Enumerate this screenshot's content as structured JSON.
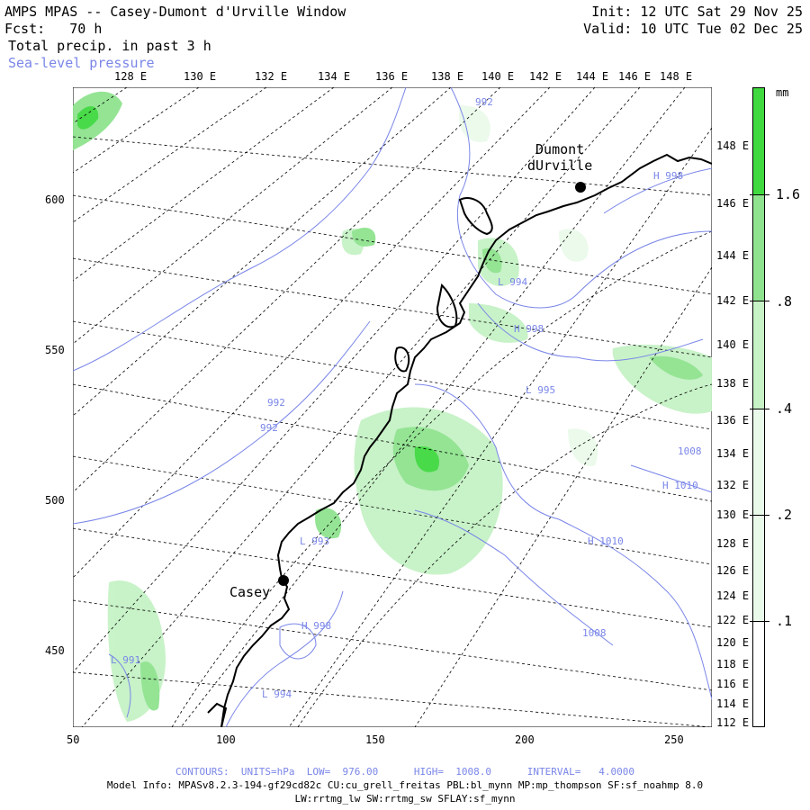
{
  "header": {
    "title": "AMPS MPAS -- Casey-Dumont d'Urville Window",
    "forecast": "Fcst:   70 h",
    "field": "Total precip. in past 3 h",
    "contour_field": "Sea-level pressure",
    "init": "Init: 12 UTC Sat 29 Nov 25",
    "valid": "Valid: 10 UTC Tue 02 Dec 25"
  },
  "top_lon_labels": [
    "128 E",
    "130 E",
    "132 E",
    "134 E",
    "136 E",
    "138 E",
    "140 E",
    "142 E",
    "144 E",
    "146 E",
    "148 E"
  ],
  "right_lon_labels": [
    "148 E",
    "146 E",
    "144 E",
    "142 E",
    "140 E",
    "138 E",
    "136 E",
    "134 E",
    "132 E",
    "130 E",
    "128 E",
    "126 E",
    "124 E",
    "122 E",
    "120 E",
    "118 E",
    "116 E",
    "114 E",
    "112 E"
  ],
  "x_ticks": [
    "50",
    "100",
    "150",
    "200",
    "250"
  ],
  "y_ticks": [
    "600",
    "550",
    "500",
    "450"
  ],
  "stations": [
    {
      "name": "Dumont dUrville",
      "line1": "Dumont",
      "line2": "dUrville"
    },
    {
      "name": "Casey",
      "line1": "Casey"
    }
  ],
  "pressure_labels": [
    {
      "text": "992"
    },
    {
      "text": "H 998"
    },
    {
      "text": "L 994"
    },
    {
      "text": "H 998"
    },
    {
      "text": "L 995"
    },
    {
      "text": "992"
    },
    {
      "text": "992"
    },
    {
      "text": "1008"
    },
    {
      "text": "H 1010"
    },
    {
      "text": "H 1010"
    },
    {
      "text": "L 993"
    },
    {
      "text": "H 998"
    },
    {
      "text": "1008"
    },
    {
      "text": "L 991"
    },
    {
      "text": "L 994"
    }
  ],
  "colorbar": {
    "unit": "mm",
    "levels": [
      ".1",
      ".2",
      ".4",
      ".8",
      "1.6"
    ],
    "colors": [
      "#ffffff",
      "#eafaea",
      "#c6f2c6",
      "#8fe38f",
      "#40d940"
    ]
  },
  "footer": {
    "contours": "CONTOURS:  UNITS=hPa  LOW=  976.00      HIGH=  1008.0      INTERVAL=   4.0000",
    "model_info": "Model Info: MPASv8.2.3-194-gf29cd82c CU:cu_grell_freitas PBL:bl_mynn MP:mp_thompson SF:sf_noahmp 8.0",
    "model_info2": "LW:rrtmg_lw SW:rrtmg_sw SFLAY:sf_mynn"
  }
}
